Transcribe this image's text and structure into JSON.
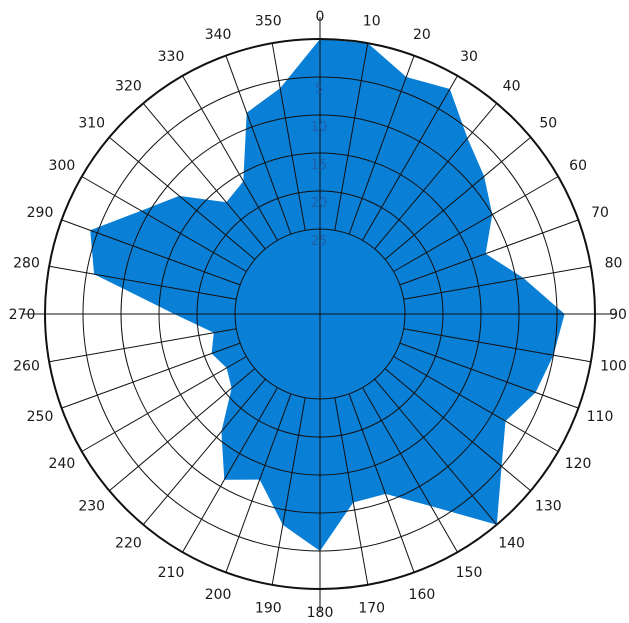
{
  "chart_data": {
    "type": "polar-area",
    "title": "",
    "angle_unit": "degrees",
    "angle_origin": "top",
    "angle_direction": "clockwise",
    "angle_ticks": [
      0,
      10,
      20,
      30,
      40,
      50,
      60,
      70,
      80,
      90,
      100,
      110,
      120,
      130,
      140,
      150,
      160,
      170,
      180,
      190,
      200,
      210,
      220,
      230,
      240,
      250,
      260,
      270,
      280,
      290,
      300,
      310,
      320,
      330,
      340,
      350
    ],
    "angle_tick_labels": [
      "0",
      "10",
      "20",
      "30",
      "40",
      "50",
      "60",
      "70",
      "80",
      "90",
      "100",
      "110",
      "120",
      "130",
      "140",
      "150",
      "160",
      "170",
      "180",
      "190",
      "200",
      "210",
      "220",
      "230",
      "240",
      "250",
      "260",
      "270",
      "280",
      "290",
      "300",
      "310",
      "320",
      "330",
      "340",
      "350"
    ],
    "radial_axis": {
      "reversed": true,
      "ticks": [
        5,
        10,
        15,
        20,
        25
      ],
      "tick_labels": [
        "5",
        "10",
        "15",
        "20",
        "25"
      ],
      "min": 0,
      "max": 30
    },
    "fill_color": "#0a7fd6",
    "series": [
      {
        "angles": [
          0,
          10,
          20,
          30,
          40,
          50,
          60,
          70,
          80,
          90,
          100,
          110,
          120,
          130,
          140,
          150,
          160,
          170,
          180,
          190,
          200,
          210,
          220,
          230,
          240,
          250,
          260,
          270,
          280,
          290,
          300,
          310,
          320,
          330,
          340,
          350
        ],
        "values": [
          0,
          0,
          3,
          2,
          6,
          8,
          10,
          13,
          9,
          4,
          5,
          6,
          8,
          5,
          0,
          7,
          11,
          11,
          5,
          8,
          13,
          11,
          16,
          21,
          22,
          21,
          22,
          17,
          6,
          4,
          9,
          12,
          17,
          16,
          8,
          6
        ]
      }
    ]
  }
}
